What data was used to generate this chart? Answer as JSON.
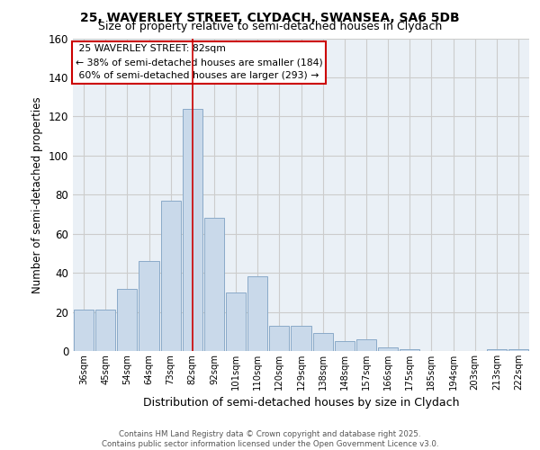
{
  "title_line1": "25, WAVERLEY STREET, CLYDACH, SWANSEA, SA6 5DB",
  "title_line2": "Size of property relative to semi-detached houses in Clydach",
  "xlabel": "Distribution of semi-detached houses by size in Clydach",
  "ylabel": "Number of semi-detached properties",
  "categories": [
    "36sqm",
    "45sqm",
    "54sqm",
    "64sqm",
    "73sqm",
    "82sqm",
    "92sqm",
    "101sqm",
    "110sqm",
    "120sqm",
    "129sqm",
    "138sqm",
    "148sqm",
    "157sqm",
    "166sqm",
    "175sqm",
    "185sqm",
    "194sqm",
    "203sqm",
    "213sqm",
    "222sqm"
  ],
  "values": [
    21,
    21,
    32,
    46,
    77,
    124,
    68,
    30,
    38,
    13,
    13,
    9,
    5,
    6,
    2,
    1,
    0,
    0,
    0,
    1,
    1
  ],
  "bar_color": "#c9d9ea",
  "bar_edge_color": "#8aaac8",
  "property_label": "25 WAVERLEY STREET: 82sqm",
  "pct_smaller": 38,
  "n_smaller": 184,
  "pct_larger": 60,
  "n_larger": 293,
  "highlight_index": 5,
  "vline_color": "#cc0000",
  "annotation_box_edge_color": "#cc0000",
  "ylim": [
    0,
    160
  ],
  "yticks": [
    0,
    20,
    40,
    60,
    80,
    100,
    120,
    140,
    160
  ],
  "grid_color": "#cccccc",
  "bg_color": "#eaf0f6",
  "footer_line1": "Contains HM Land Registry data © Crown copyright and database right 2025.",
  "footer_line2": "Contains public sector information licensed under the Open Government Licence v3.0."
}
